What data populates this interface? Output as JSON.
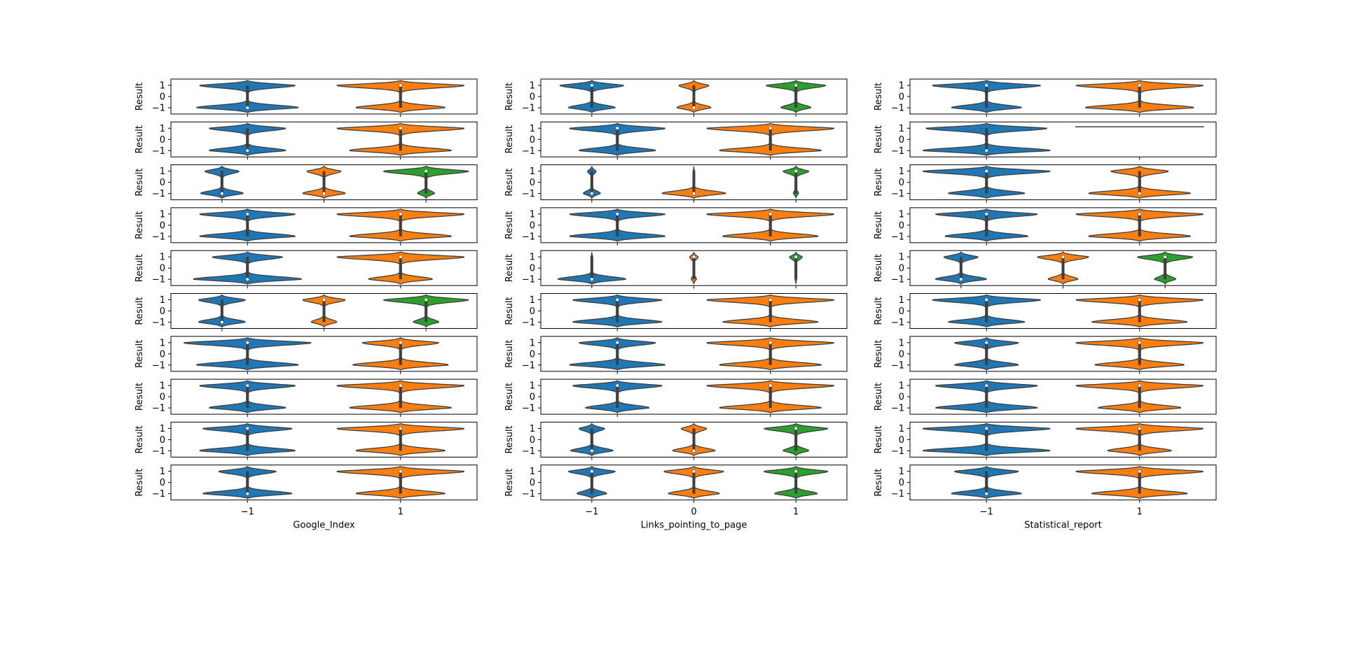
{
  "figure": {
    "facecolor": "#ffffff",
    "palette": [
      "#1f77b4",
      "#ff7f0e",
      "#2ca02c"
    ],
    "edgecolor": "#3f3f3f"
  },
  "chart_data": [
    {
      "type": "violin",
      "xlabel": "Google_Index",
      "ylabel": "Result",
      "yticks": [
        1,
        0,
        -1
      ],
      "xtick_labels": [
        "-1",
        "1"
      ],
      "panels": [
        {
          "categories": [
            "-1",
            "1"
          ],
          "violins": [
            {
              "top": 0.75,
              "bot": 0.8,
              "median": -1
            },
            {
              "top": 1.0,
              "bot": 0.7,
              "median": 1
            }
          ]
        },
        {
          "categories": [
            "-1",
            "1"
          ],
          "violins": [
            {
              "top": 0.6,
              "bot": 0.6,
              "median": -1
            },
            {
              "top": 1.0,
              "bot": 0.8,
              "median": 1
            }
          ]
        },
        {
          "categories": [
            "-1",
            "0",
            "1"
          ],
          "violins": [
            {
              "top": 0.4,
              "bot": 0.5,
              "median": -1
            },
            {
              "top": 0.4,
              "bot": 0.5,
              "median": -1
            },
            {
              "top": 1.0,
              "bot": 0.2,
              "median": 1
            }
          ]
        },
        {
          "categories": [
            "-1",
            "1"
          ],
          "violins": [
            {
              "top": 0.75,
              "bot": 0.75,
              "median": 1
            },
            {
              "top": 1.0,
              "bot": 0.8,
              "median": 1
            }
          ]
        },
        {
          "categories": [
            "-1",
            "1"
          ],
          "violins": [
            {
              "top": 0.55,
              "bot": 0.85,
              "median": -1
            },
            {
              "top": 1.0,
              "bot": 0.5,
              "median": 1
            }
          ]
        },
        {
          "categories": [
            "-1",
            "0",
            "1"
          ],
          "violins": [
            {
              "top": 0.55,
              "bot": 0.55,
              "median": -1
            },
            {
              "top": 0.5,
              "bot": 0.3,
              "median": 1
            },
            {
              "top": 1.0,
              "bot": 0.3,
              "median": 1
            }
          ]
        },
        {
          "categories": [
            "-1",
            "1"
          ],
          "violins": [
            {
              "top": 1.0,
              "bot": 0.8,
              "median": 1
            },
            {
              "top": 0.6,
              "bot": 0.75,
              "median": 1
            }
          ]
        },
        {
          "categories": [
            "-1",
            "1"
          ],
          "violins": [
            {
              "top": 0.75,
              "bot": 0.6,
              "median": 1
            },
            {
              "top": 1.0,
              "bot": 0.8,
              "median": 1
            }
          ]
        },
        {
          "categories": [
            "-1",
            "1"
          ],
          "violins": [
            {
              "top": 0.7,
              "bot": 0.75,
              "median": 1
            },
            {
              "top": 1.0,
              "bot": 0.7,
              "median": 1
            }
          ]
        },
        {
          "categories": [
            "-1",
            "1"
          ],
          "violins": [
            {
              "top": 0.45,
              "bot": 0.7,
              "median": -1
            },
            {
              "top": 1.0,
              "bot": 0.7,
              "median": 1
            }
          ]
        }
      ]
    },
    {
      "type": "violin",
      "xlabel": "Links_pointing_to_page",
      "ylabel": "Result",
      "yticks": [
        1,
        0,
        -1
      ],
      "xtick_labels": [
        "-1",
        "0",
        "1"
      ],
      "panels": [
        {
          "categories": [
            "-1",
            "0",
            "1"
          ],
          "violins": [
            {
              "top": 0.75,
              "bot": 0.55,
              "median": 1
            },
            {
              "top": 0.35,
              "bot": 0.4,
              "median": -1
            },
            {
              "top": 0.7,
              "bot": 0.35,
              "median": 1
            }
          ]
        },
        {
          "categories": [
            "-1",
            "1"
          ],
          "violins": [
            {
              "top": 0.75,
              "bot": 0.6,
              "median": 1
            },
            {
              "top": 1.0,
              "bot": 0.8,
              "median": 1
            }
          ]
        },
        {
          "categories": [
            "-1",
            "0",
            "1"
          ],
          "violins": [
            {
              "top": 0.1,
              "bot": 0.2,
              "median": -1
            },
            {
              "top": 0.02,
              "bot": 0.75,
              "median": -1
            },
            {
              "top": 0.3,
              "bot": 0.06,
              "median": 1
            }
          ]
        },
        {
          "categories": [
            "-1",
            "1"
          ],
          "violins": [
            {
              "top": 0.75,
              "bot": 0.75,
              "median": 1
            },
            {
              "top": 1.0,
              "bot": 0.75,
              "median": 1
            }
          ]
        },
        {
          "categories": [
            "-1",
            "0",
            "1"
          ],
          "violins": [
            {
              "top": 0.02,
              "bot": 0.8,
              "median": -1
            },
            {
              "top": 0.1,
              "bot": 0.06,
              "median": 1
            },
            {
              "top": 0.15,
              "bot": 0.02,
              "median": 1
            }
          ]
        },
        {
          "categories": [
            "-1",
            "1"
          ],
          "violins": [
            {
              "top": 0.7,
              "bot": 0.7,
              "median": 1
            },
            {
              "top": 1.0,
              "bot": 0.75,
              "median": 1
            }
          ]
        },
        {
          "categories": [
            "-1",
            "1"
          ],
          "violins": [
            {
              "top": 0.6,
              "bot": 0.75,
              "median": 1
            },
            {
              "top": 1.0,
              "bot": 0.8,
              "median": 1
            }
          ]
        },
        {
          "categories": [
            "-1",
            "1"
          ],
          "violins": [
            {
              "top": 0.7,
              "bot": 0.5,
              "median": 1
            },
            {
              "top": 1.0,
              "bot": 0.8,
              "median": 1
            }
          ]
        },
        {
          "categories": [
            "-1",
            "0",
            "1"
          ],
          "violins": [
            {
              "top": 0.3,
              "bot": 0.5,
              "median": -1
            },
            {
              "top": 0.3,
              "bot": 0.5,
              "median": -1
            },
            {
              "top": 0.75,
              "bot": 0.3,
              "median": 1
            }
          ]
        },
        {
          "categories": [
            "-1",
            "0",
            "1"
          ],
          "violins": [
            {
              "top": 0.55,
              "bot": 0.35,
              "median": 1
            },
            {
              "top": 0.7,
              "bot": 0.6,
              "median": 1
            },
            {
              "top": 0.75,
              "bot": 0.5,
              "median": 1
            }
          ]
        }
      ]
    },
    {
      "type": "violin",
      "xlabel": "Statistical_report",
      "ylabel": "Result",
      "yticks": [
        1,
        0,
        -1
      ],
      "xtick_labels": [
        "-1",
        "1"
      ],
      "panels": [
        {
          "categories": [
            "-1",
            "1"
          ],
          "violins": [
            {
              "top": 0.85,
              "bot": 0.55,
              "median": 1
            },
            {
              "top": 1.0,
              "bot": 0.85,
              "median": 1
            }
          ]
        },
        {
          "categories": [
            "-1",
            "1"
          ],
          "violins": [
            {
              "top": 0.95,
              "bot": 1.0,
              "median": -1,
              "tail_only": true
            },
            {
              "top": 0,
              "bot": 0,
              "median": 1,
              "flat": true
            }
          ]
        },
        {
          "categories": [
            "-1",
            "1"
          ],
          "violins": [
            {
              "top": 1.0,
              "bot": 0.6,
              "median": 1
            },
            {
              "top": 0.45,
              "bot": 0.8,
              "median": -1
            }
          ]
        },
        {
          "categories": [
            "-1",
            "1"
          ],
          "violins": [
            {
              "top": 0.8,
              "bot": 0.65,
              "median": 1
            },
            {
              "top": 1.0,
              "bot": 0.8,
              "median": 1
            }
          ]
        },
        {
          "categories": [
            "-1",
            "0",
            "1"
          ],
          "violins": [
            {
              "top": 0.4,
              "bot": 0.6,
              "median": -1
            },
            {
              "top": 0.6,
              "bot": 0.35,
              "median": 1
            },
            {
              "top": 0.65,
              "bot": 0.25,
              "median": 1
            }
          ]
        },
        {
          "categories": [
            "-1",
            "1"
          ],
          "violins": [
            {
              "top": 0.85,
              "bot": 0.6,
              "median": 1
            },
            {
              "top": 1.0,
              "bot": 0.75,
              "median": 1
            }
          ]
        },
        {
          "categories": [
            "-1",
            "1"
          ],
          "violins": [
            {
              "top": 0.5,
              "bot": 0.5,
              "median": 1
            },
            {
              "top": 1.0,
              "bot": 0.7,
              "median": 1
            }
          ]
        },
        {
          "categories": [
            "-1",
            "1"
          ],
          "violins": [
            {
              "top": 0.8,
              "bot": 0.8,
              "median": 1
            },
            {
              "top": 1.0,
              "bot": 0.65,
              "median": 1
            }
          ]
        },
        {
          "categories": [
            "-1",
            "1"
          ],
          "violins": [
            {
              "top": 1.0,
              "bot": 1.0,
              "median": 1
            },
            {
              "top": 1.0,
              "bot": 0.5,
              "median": 1
            }
          ]
        },
        {
          "categories": [
            "-1",
            "1"
          ],
          "violins": [
            {
              "top": 0.5,
              "bot": 0.55,
              "median": -1
            },
            {
              "top": 1.0,
              "bot": 0.75,
              "median": 1
            }
          ]
        }
      ]
    }
  ]
}
